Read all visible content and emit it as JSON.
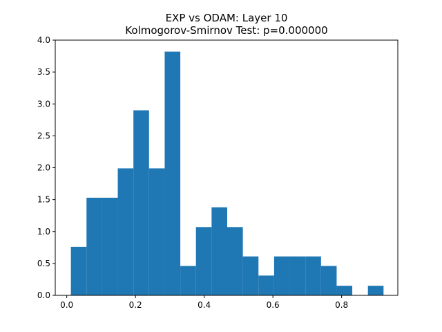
{
  "chart_data": {
    "type": "bar",
    "subtype": "histogram",
    "title": "EXP vs ODAM: Layer 10",
    "subtitle": "Kolmogorov-Smirnov Test: p=0.000000",
    "xlabel": "",
    "ylabel": "",
    "xlim": [
      -0.0335,
      0.9635
    ],
    "ylim": [
      0,
      4.0
    ],
    "xticks": [
      0.0,
      0.2,
      0.4,
      0.6,
      0.8
    ],
    "xtick_labels": [
      "0.0",
      "0.2",
      "0.4",
      "0.6",
      "0.8"
    ],
    "yticks": [
      0.0,
      0.5,
      1.0,
      1.5,
      2.0,
      2.5,
      3.0,
      3.5,
      4.0
    ],
    "ytick_labels": [
      "0.0",
      "0.5",
      "1.0",
      "1.5",
      "2.0",
      "2.5",
      "3.0",
      "3.5",
      "4.0"
    ],
    "bin_edges": [
      0.012,
      0.0575,
      0.103,
      0.1485,
      0.194,
      0.2395,
      0.285,
      0.3305,
      0.376,
      0.4215,
      0.467,
      0.5125,
      0.558,
      0.6035,
      0.649,
      0.6945,
      0.74,
      0.7855,
      0.831,
      0.8765,
      0.922
    ],
    "values": [
      0.76,
      1.53,
      1.53,
      1.99,
      2.9,
      1.99,
      3.82,
      0.46,
      1.07,
      1.38,
      1.07,
      0.61,
      0.31,
      0.61,
      0.61,
      0.61,
      0.46,
      0.15,
      0.0,
      0.15
    ],
    "bar_color": "#1f77b4",
    "grid": false,
    "legend": "none"
  }
}
